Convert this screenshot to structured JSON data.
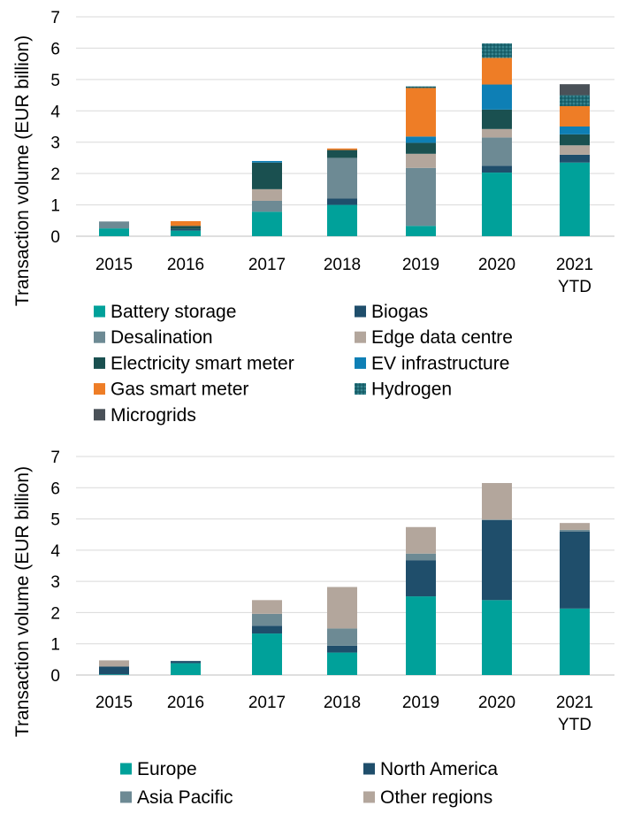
{
  "chart_data": [
    {
      "type": "bar",
      "stacked": true,
      "title": "",
      "xlabel": "",
      "ylabel": "Transaction volume (EUR billion)",
      "ylim": [
        0,
        7
      ],
      "yticks": [
        0,
        1,
        2,
        3,
        4,
        5,
        6,
        7
      ],
      "grid": true,
      "legend": "bottom",
      "categories": [
        [
          "2015"
        ],
        [
          "2016"
        ],
        [
          "2017"
        ],
        [
          "2018"
        ],
        [
          "2019"
        ],
        [
          "2020"
        ],
        [
          "2021",
          "YTD"
        ]
      ],
      "series": [
        {
          "name": "Battery storage",
          "color": "#00A19A",
          "pattern": "none",
          "values": [
            0.25,
            0.18,
            0.78,
            1.0,
            0.33,
            2.03,
            2.35
          ]
        },
        {
          "name": "Biogas",
          "color": "#1F4E6B",
          "pattern": "none",
          "values": [
            0.0,
            0.05,
            0.0,
            0.2,
            0.0,
            0.22,
            0.25
          ]
        },
        {
          "name": "Desalination",
          "color": "#6D8A94",
          "pattern": "none",
          "values": [
            0.22,
            0.0,
            0.35,
            1.3,
            1.85,
            0.9,
            0.0
          ]
        },
        {
          "name": "Edge data centre",
          "color": "#B3A69C",
          "pattern": "none",
          "values": [
            0.0,
            0.0,
            0.37,
            0.0,
            0.45,
            0.27,
            0.3
          ]
        },
        {
          "name": "Electricity smart meter",
          "color": "#1A5050",
          "pattern": "none",
          "values": [
            0.0,
            0.1,
            0.85,
            0.25,
            0.35,
            0.62,
            0.35
          ]
        },
        {
          "name": "EV infrastructure",
          "color": "#0E7FB5",
          "pattern": "none",
          "values": [
            0.0,
            0.0,
            0.05,
            0.0,
            0.2,
            0.8,
            0.25
          ]
        },
        {
          "name": "Gas smart meter",
          "color": "#EE7D26",
          "pattern": "none",
          "values": [
            0.0,
            0.15,
            0.0,
            0.05,
            1.55,
            0.85,
            0.65
          ]
        },
        {
          "name": "Hydrogen",
          "color": "#1F6A75",
          "pattern": "dots",
          "values": [
            0.0,
            0.0,
            0.0,
            0.0,
            0.05,
            0.46,
            0.35
          ]
        },
        {
          "name": "Microgrids",
          "color": "#4A5158",
          "pattern": "none",
          "values": [
            0.0,
            0.0,
            0.0,
            0.0,
            0.0,
            0.0,
            0.35
          ]
        }
      ]
    },
    {
      "type": "bar",
      "stacked": true,
      "title": "",
      "xlabel": "",
      "ylabel": "Transaction volume (EUR billion)",
      "ylim": [
        0,
        7
      ],
      "yticks": [
        0,
        1,
        2,
        3,
        4,
        5,
        6,
        7
      ],
      "grid": true,
      "legend": "bottom",
      "categories": [
        [
          "2015"
        ],
        [
          "2016"
        ],
        [
          "2017"
        ],
        [
          "2018"
        ],
        [
          "2019"
        ],
        [
          "2020"
        ],
        [
          "2021",
          "YTD"
        ]
      ],
      "series": [
        {
          "name": "Europe",
          "color": "#00A19A",
          "pattern": "none",
          "values": [
            0.02,
            0.38,
            1.33,
            0.72,
            2.52,
            2.4,
            2.13
          ]
        },
        {
          "name": "North America",
          "color": "#1F4E6B",
          "pattern": "none",
          "values": [
            0.25,
            0.07,
            0.25,
            0.22,
            1.15,
            2.56,
            2.47
          ]
        },
        {
          "name": "Asia Pacific",
          "color": "#6D8A94",
          "pattern": "none",
          "values": [
            0.0,
            0.0,
            0.38,
            0.55,
            0.22,
            0.02,
            0.05
          ]
        },
        {
          "name": "Other regions",
          "color": "#B3A69C",
          "pattern": "none",
          "values": [
            0.2,
            0.0,
            0.44,
            1.33,
            0.85,
            1.17,
            0.22
          ]
        }
      ]
    }
  ]
}
